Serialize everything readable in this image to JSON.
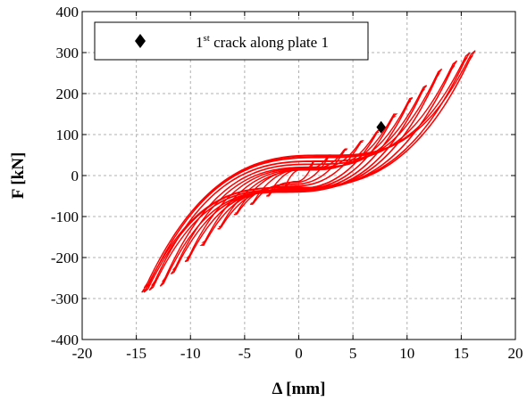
{
  "chart_data": {
    "type": "line",
    "xlabel": "Δ [mm]",
    "ylabel": "F [kN]",
    "xlim": [
      -20,
      20
    ],
    "ylim": [
      -400,
      400
    ],
    "xticks": [
      -20,
      -15,
      -10,
      -5,
      0,
      5,
      10,
      15,
      20
    ],
    "yticks": [
      -400,
      -300,
      -200,
      -100,
      0,
      100,
      200,
      300,
      400
    ],
    "xtick_labels": [
      "-20",
      "-15",
      "-10",
      "-5",
      "0",
      "5",
      "10",
      "15",
      "20"
    ],
    "ytick_labels": [
      "-400",
      "-300",
      "-200",
      "-100",
      "0",
      "100",
      "200",
      "300",
      "400"
    ],
    "grid": true,
    "legend_position": "top-left",
    "line_color": "#ff0000",
    "series": [
      {
        "description": "hysteresis loops (cyclic force-displacement)",
        "loops": [
          {
            "dmax": 1.5,
            "fmax": 35,
            "dmin": -1.5,
            "fmin": -35
          },
          {
            "dmax": 3.0,
            "fmax": 50,
            "dmin": -3.0,
            "fmin": -50
          },
          {
            "dmax": 4.5,
            "fmax": 65,
            "dmin": -4.5,
            "fmin": -70
          },
          {
            "dmax": 6.0,
            "fmax": 85,
            "dmin": -6.0,
            "fmin": -95
          },
          {
            "dmax": 7.5,
            "fmax": 110,
            "dmin": -7.5,
            "fmin": -130
          },
          {
            "dmax": 9.0,
            "fmax": 150,
            "dmin": -9.0,
            "fmin": -170
          },
          {
            "dmax": 10.5,
            "fmax": 190,
            "dmin": -10.5,
            "fmin": -210
          },
          {
            "dmax": 11.8,
            "fmax": 220,
            "dmin": -11.8,
            "fmin": -240
          },
          {
            "dmax": 13.2,
            "fmax": 260,
            "dmin": -12.8,
            "fmin": -270
          },
          {
            "dmax": 14.6,
            "fmax": 280,
            "dmin": -13.8,
            "fmin": -280
          },
          {
            "dmax": 15.8,
            "fmax": 300,
            "dmin": -14.3,
            "fmin": -285
          },
          {
            "dmax": 16.3,
            "fmax": 305,
            "dmin": -14.5,
            "fmin": -285
          }
        ]
      }
    ],
    "marker": {
      "symbol": "diamond",
      "color": "#000000",
      "x": 7.6,
      "y": 118,
      "legend_label_prefix": "1",
      "legend_label_sup": "st",
      "legend_label_suffix": " crack along plate 1"
    }
  }
}
